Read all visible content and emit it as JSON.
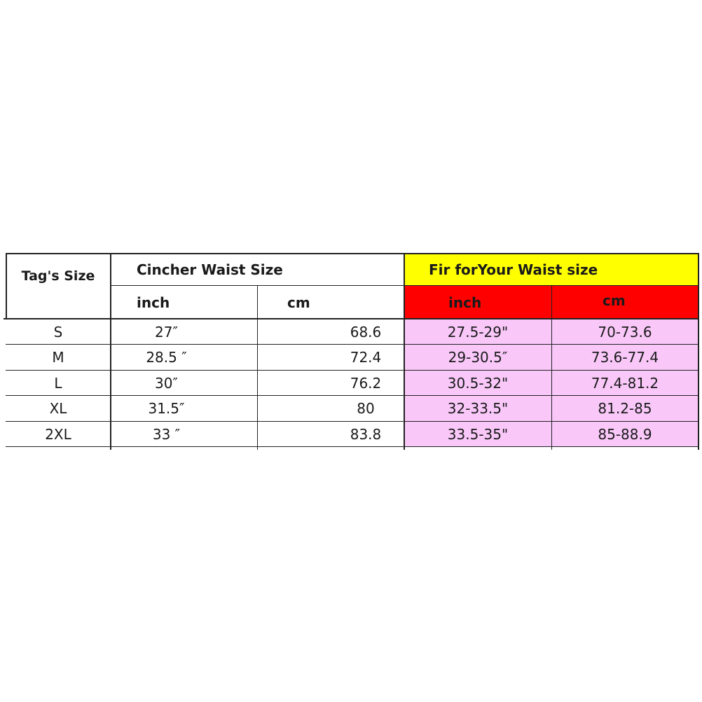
{
  "table": {
    "tag_size_header": "Tag's Size",
    "cincher_header": "Cincher Waist Size",
    "fit_header": "Fir forYour Waist size",
    "cincher_sub": {
      "inch": "inch",
      "cm": "cm"
    },
    "fit_sub": {
      "inch": "inch",
      "cm": "cm"
    },
    "rows": [
      {
        "size": "S",
        "inch": "27″",
        "cm": "68.6",
        "fit_inch": "27.5-29\"",
        "fit_cm": "70-73.6"
      },
      {
        "size": "M",
        "inch": "28.5 ″",
        "cm": "72.4",
        "fit_inch": "29-30.5″",
        "fit_cm": "73.6-77.4"
      },
      {
        "size": "L",
        "inch": "30″",
        "cm": "76.2",
        "fit_inch": "30.5-32\"",
        "fit_cm": "77.4-81.2"
      },
      {
        "size": "XL",
        "inch": "31.5″",
        "cm": "80",
        "fit_inch": "32-33.5\"",
        "fit_cm": "81.2-85"
      },
      {
        "size": "2XL",
        "inch": "33 ″",
        "cm": "83.8",
        "fit_inch": "33.5-35\"",
        "fit_cm": "85-88.9"
      }
    ],
    "colors": {
      "fit_header": "#ffff00",
      "fit_subheader": "#ff0000",
      "fit_body": "#f9c8f9"
    }
  }
}
